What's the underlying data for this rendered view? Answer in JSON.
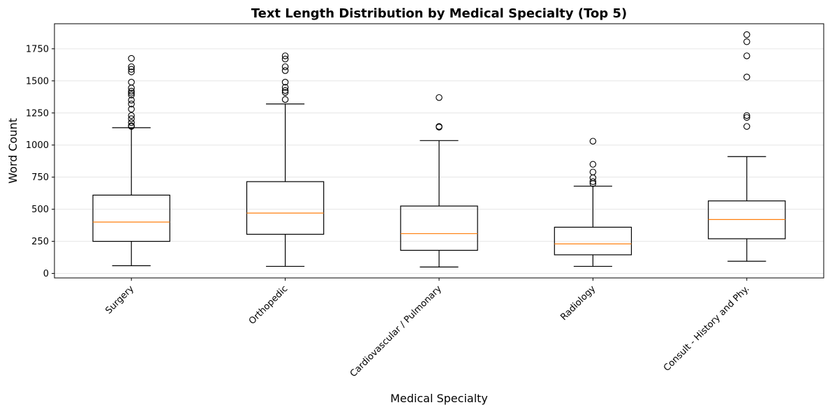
{
  "chart_data": {
    "type": "box",
    "title": "Text Length Distribution by Medical Specialty (Top 5)",
    "xlabel": "Medical Specialty",
    "ylabel": "Word Count",
    "ylim": [
      -35,
      1945
    ],
    "yticks": [
      0,
      250,
      500,
      750,
      1000,
      1250,
      1500,
      1750
    ],
    "grid": "y",
    "colors": {
      "box": "#000000",
      "median": "#ff7f0e",
      "grid": "#e6e6e6"
    },
    "categories": [
      "Surgery",
      "Orthopedic",
      "Cardiovascular / Pulmonary",
      "Radiology",
      "Consult - History and Phy."
    ],
    "boxes": [
      {
        "whisker_low": 60,
        "q1": 250,
        "median": 400,
        "q3": 610,
        "whisker_high": 1135,
        "outliers": [
          1145,
          1150,
          1175,
          1205,
          1230,
          1280,
          1320,
          1350,
          1390,
          1405,
          1420,
          1445,
          1490,
          1570,
          1590,
          1610,
          1675
        ]
      },
      {
        "whisker_low": 55,
        "q1": 305,
        "median": 470,
        "q3": 715,
        "whisker_high": 1320,
        "outliers": [
          1355,
          1410,
          1425,
          1450,
          1490,
          1580,
          1610,
          1670,
          1695
        ]
      },
      {
        "whisker_low": 50,
        "q1": 180,
        "median": 310,
        "q3": 525,
        "whisker_high": 1035,
        "outliers": [
          1140,
          1145,
          1370
        ]
      },
      {
        "whisker_low": 55,
        "q1": 145,
        "median": 230,
        "q3": 360,
        "whisker_high": 680,
        "outliers": [
          700,
          715,
          745,
          790,
          850,
          1030
        ]
      },
      {
        "whisker_low": 95,
        "q1": 270,
        "median": 420,
        "q3": 565,
        "whisker_high": 910,
        "outliers": [
          1145,
          1215,
          1230,
          1530,
          1695,
          1805,
          1860
        ]
      }
    ]
  }
}
